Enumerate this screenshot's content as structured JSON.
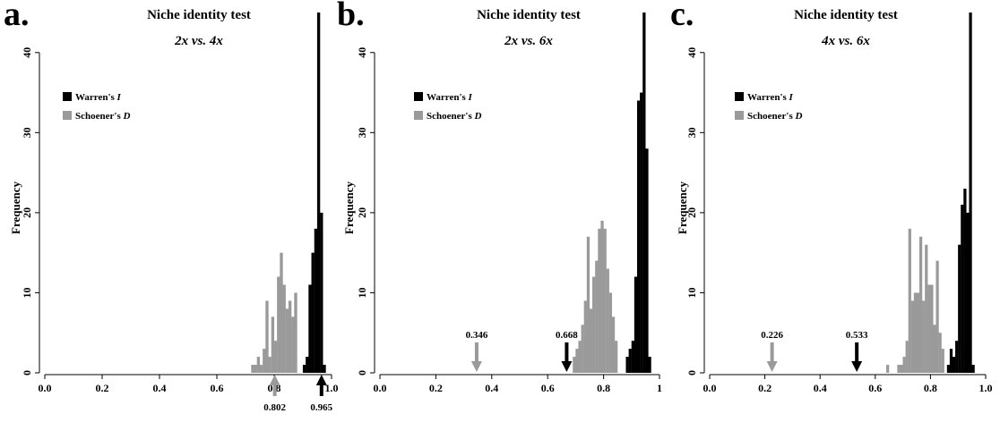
{
  "colors": {
    "warren": "#000000",
    "schoener": "#9a9a9a",
    "arrow_black": "#000000",
    "arrow_gray": "#9a9a9a"
  },
  "chart_data": [
    {
      "type": "bar",
      "panel_letter": "a.",
      "title": "Niche identity test",
      "subtitle": {
        "left": "2x",
        "mid": "vs.",
        "right": "4x"
      },
      "ylabel": "Frequency",
      "xlabel": "",
      "xlim": [
        0.0,
        1.0
      ],
      "ylim": [
        0,
        45
      ],
      "xticks": [
        "0.0",
        "0.2",
        "0.4",
        "0.6",
        "0.8",
        "1.0"
      ],
      "yticks": [
        "0",
        "10",
        "20",
        "30",
        "40"
      ],
      "legend": {
        "position": "left",
        "entries": [
          {
            "label": "Warren's",
            "italic": "I"
          },
          {
            "label": "Schoener's",
            "italic": "D"
          }
        ]
      },
      "series": [
        {
          "name": "Schoener's D",
          "color": "gray",
          "bins": [
            [
              0.725,
              1
            ],
            [
              0.735,
              1
            ],
            [
              0.745,
              2
            ],
            [
              0.755,
              1
            ],
            [
              0.765,
              3
            ],
            [
              0.775,
              9
            ],
            [
              0.785,
              2
            ],
            [
              0.795,
              7
            ],
            [
              0.805,
              4
            ],
            [
              0.815,
              12
            ],
            [
              0.825,
              15
            ],
            [
              0.835,
              11
            ],
            [
              0.845,
              8
            ],
            [
              0.855,
              9
            ],
            [
              0.865,
              7
            ],
            [
              0.875,
              10
            ]
          ]
        },
        {
          "name": "Warren's I",
          "color": "black",
          "bins": [
            [
              0.905,
              1
            ],
            [
              0.915,
              2
            ],
            [
              0.925,
              11
            ],
            [
              0.935,
              15
            ],
            [
              0.945,
              18
            ],
            [
              0.955,
              45
            ],
            [
              0.965,
              20
            ],
            [
              0.975,
              1
            ]
          ]
        }
      ],
      "annotations": [
        {
          "label": "0.802",
          "x": 0.802,
          "color": "gray",
          "position": "below"
        },
        {
          "label": "0.965",
          "x": 0.965,
          "color": "black",
          "position": "below"
        }
      ]
    },
    {
      "type": "bar",
      "panel_letter": "b.",
      "title": "Niche identity test",
      "subtitle": {
        "left": "2x",
        "mid": "vs.",
        "right": "6x"
      },
      "ylabel": "Frequency",
      "xlabel": "",
      "xlim": [
        0.0,
        1.0
      ],
      "ylim": [
        0,
        45
      ],
      "xticks": [
        "0.0",
        "0.2",
        "0.4",
        "0.6",
        "0.8",
        "1"
      ],
      "yticks": [
        "0",
        "10",
        "20",
        "30",
        "40"
      ],
      "legend": {
        "position": "top-center",
        "entries": [
          {
            "label": "Warren's",
            "italic": "I"
          },
          {
            "label": "Schoener's",
            "italic": "D"
          }
        ]
      },
      "series": [
        {
          "name": "Schoener's D",
          "color": "gray",
          "bins": [
            [
              0.695,
              2
            ],
            [
              0.705,
              3
            ],
            [
              0.715,
              4
            ],
            [
              0.725,
              6
            ],
            [
              0.735,
              9
            ],
            [
              0.745,
              17
            ],
            [
              0.755,
              8
            ],
            [
              0.765,
              12
            ],
            [
              0.775,
              14
            ],
            [
              0.785,
              18
            ],
            [
              0.795,
              19
            ],
            [
              0.805,
              18
            ],
            [
              0.815,
              13
            ],
            [
              0.825,
              10
            ],
            [
              0.835,
              7
            ],
            [
              0.845,
              4
            ]
          ]
        },
        {
          "name": "Warren's I",
          "color": "black",
          "bins": [
            [
              0.885,
              2
            ],
            [
              0.895,
              3
            ],
            [
              0.905,
              4
            ],
            [
              0.915,
              12
            ],
            [
              0.925,
              34
            ],
            [
              0.935,
              35
            ],
            [
              0.945,
              45
            ],
            [
              0.955,
              28
            ],
            [
              0.965,
              2
            ]
          ]
        }
      ],
      "annotations": [
        {
          "label": "0.346",
          "x": 0.346,
          "color": "gray",
          "position": "above"
        },
        {
          "label": "0.668",
          "x": 0.668,
          "color": "black",
          "position": "above"
        }
      ]
    },
    {
      "type": "bar",
      "panel_letter": "c.",
      "title": "Niche identity test",
      "subtitle": {
        "left": "4x",
        "mid": "vs.",
        "right": "6x"
      },
      "ylabel": "Frequency",
      "xlabel": "",
      "xlim": [
        0.0,
        1.0
      ],
      "ylim": [
        0,
        45
      ],
      "xticks": [
        "0.0",
        "0.2",
        "0.4",
        "0.6",
        "0.8",
        "1.0"
      ],
      "yticks": [
        "0",
        "10",
        "20",
        "30",
        "40"
      ],
      "legend": {
        "position": "top-center",
        "entries": [
          {
            "label": "Warren's",
            "italic": "I"
          },
          {
            "label": "Schoener's",
            "italic": "D"
          }
        ]
      },
      "series": [
        {
          "name": "Schoener's D",
          "color": "gray",
          "bins": [
            [
              0.645,
              1
            ],
            [
              0.665,
              0
            ],
            [
              0.685,
              1
            ],
            [
              0.695,
              1
            ],
            [
              0.705,
              2
            ],
            [
              0.715,
              4
            ],
            [
              0.725,
              18
            ],
            [
              0.735,
              9
            ],
            [
              0.745,
              10
            ],
            [
              0.755,
              10
            ],
            [
              0.765,
              17
            ],
            [
              0.775,
              9
            ],
            [
              0.785,
              16
            ],
            [
              0.795,
              11
            ],
            [
              0.805,
              11
            ],
            [
              0.815,
              6
            ],
            [
              0.825,
              14
            ],
            [
              0.835,
              5
            ],
            [
              0.845,
              3
            ]
          ]
        },
        {
          "name": "Warren's I",
          "color": "black",
          "bins": [
            [
              0.865,
              1
            ],
            [
              0.875,
              3
            ],
            [
              0.885,
              2
            ],
            [
              0.895,
              4
            ],
            [
              0.905,
              16
            ],
            [
              0.915,
              21
            ],
            [
              0.925,
              23
            ],
            [
              0.935,
              20
            ],
            [
              0.945,
              45
            ],
            [
              0.955,
              1
            ]
          ]
        }
      ],
      "annotations": [
        {
          "label": "0.226",
          "x": 0.226,
          "color": "gray",
          "position": "above"
        },
        {
          "label": "0.533",
          "x": 0.533,
          "color": "black",
          "position": "above"
        }
      ]
    }
  ]
}
